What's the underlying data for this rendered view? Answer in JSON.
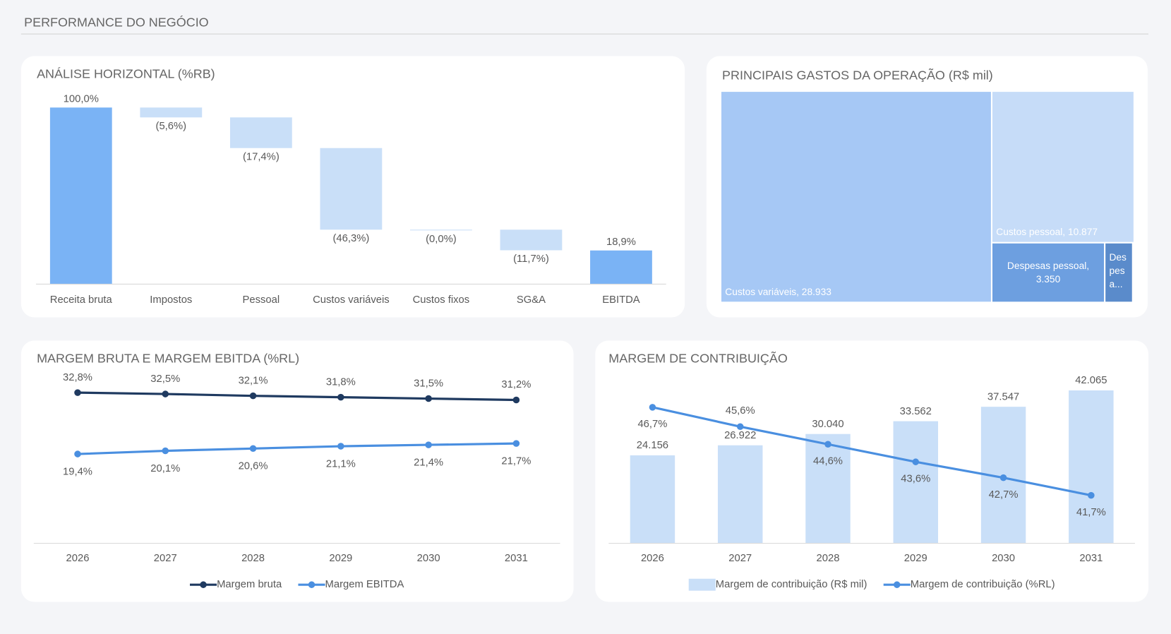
{
  "header": {
    "title": "PERFORMANCE DO NEGÓCIO"
  },
  "chart_data": [
    {
      "type": "waterfall",
      "title": "ANÁLISE HORIZONTAL (%RB)",
      "categories": [
        "Receita bruta",
        "Impostos",
        "Pessoal",
        "Custos variáveis",
        "Custos fixos",
        "SG&A",
        "EBITDA"
      ],
      "values": [
        100.0,
        -5.6,
        -17.4,
        -46.3,
        0,
        -11.7,
        18.9
      ],
      "value_labels": [
        "100,0%",
        "(5,6%)",
        "(17,4%)",
        "(46,3%)",
        "(0,0%)",
        "(11,7%)",
        "18,9%"
      ],
      "totals": [
        true,
        false,
        false,
        false,
        false,
        false,
        true
      ],
      "total_color": "#7ab3f5",
      "step_color": "#c9dff8",
      "ylim": [
        0,
        100
      ]
    },
    {
      "type": "treemap",
      "title": "PRINCIPAIS GASTOS DA OPERAÇÃO (R$ mil)",
      "labels": [
        "Custos variáveis, 28.933",
        "Custos pessoal, 10.877",
        "Despesas pessoal, 3.350",
        "Des pes a..."
      ],
      "values": [
        28933,
        10877,
        3350,
        830
      ],
      "colors": [
        "#a6c8f5",
        "#c6dcf8",
        "#6d9fe0",
        "#5a8bcb"
      ]
    },
    {
      "type": "line",
      "title": "MARGEM BRUTA E MARGEM EBITDA (%RL)",
      "categories": [
        "2026",
        "2027",
        "2028",
        "2029",
        "2030",
        "2031"
      ],
      "series": [
        {
          "name": "Margem bruta",
          "color": "#1f3a60",
          "values": [
            32.8,
            32.5,
            32.1,
            31.8,
            31.5,
            31.2
          ],
          "value_labels": [
            "32,8%",
            "32,5%",
            "32,1%",
            "31,8%",
            "31,5%",
            "31,2%"
          ]
        },
        {
          "name": "Margem EBITDA",
          "color": "#4a8fe0",
          "values": [
            19.4,
            20.1,
            20.6,
            21.1,
            21.4,
            21.7
          ],
          "value_labels": [
            "19,4%",
            "20,1%",
            "20,6%",
            "21,1%",
            "21,4%",
            "21,7%"
          ]
        }
      ],
      "ylim": [
        0,
        37
      ]
    },
    {
      "type": "combo",
      "title": "MARGEM DE CONTRIBUIÇÃO",
      "categories": [
        "2026",
        "2027",
        "2028",
        "2029",
        "2030",
        "2031"
      ],
      "series": [
        {
          "name": "Margem de contribuição (R$ mil)",
          "type": "bar",
          "color": "#c9dff8",
          "values": [
            24156,
            26922,
            30040,
            33562,
            37547,
            42065
          ],
          "value_labels": [
            "24.156",
            "26.922",
            "30.040",
            "33.562",
            "37.547",
            "42.065"
          ]
        },
        {
          "name": "Margem de contribuição (%RL)",
          "type": "line",
          "axis": "y2",
          "color": "#4a8fe0",
          "values": [
            46.7,
            45.6,
            44.6,
            43.6,
            42.7,
            41.7
          ],
          "value_labels": [
            "46,7%",
            "45,6%",
            "44,6%",
            "43,6%",
            "42,7%",
            "41,7%"
          ]
        }
      ],
      "ylim": [
        0,
        44700
      ],
      "y2lim": [
        39,
        48.2
      ]
    }
  ]
}
